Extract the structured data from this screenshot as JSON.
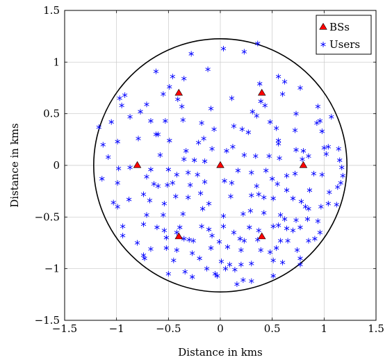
{
  "chart_data": {
    "type": "scatter",
    "title": "",
    "xlabel": "Distance in kms",
    "ylabel": "Distance in kms",
    "xlim": [
      -1.5,
      1.5
    ],
    "ylim": [
      -1.5,
      1.5
    ],
    "xticks": [
      -1.5,
      -1,
      -0.5,
      0,
      0.5,
      1,
      1.5
    ],
    "yticks": [
      -1.5,
      -1,
      -0.5,
      0,
      0.5,
      1,
      1.5
    ],
    "xtick_labels": [
      "−1.5",
      "−1",
      "−0.5",
      "0",
      "0.5",
      "1",
      "1.5"
    ],
    "ytick_labels": [
      "−1.5",
      "−1",
      "−0.5",
      "0",
      "0.5",
      "1",
      "1.5"
    ],
    "grid": true,
    "legend_position": "top-right",
    "boundary_circle": {
      "center": [
        0,
        0
      ],
      "radius": 1.22,
      "color": "#000000"
    },
    "series": [
      {
        "name": "BSs",
        "marker": "triangle",
        "color": "#ff0000",
        "points": [
          [
            0,
            0
          ],
          [
            -0.8,
            0
          ],
          [
            0.8,
            0
          ],
          [
            -0.4,
            0.7
          ],
          [
            0.4,
            0.7
          ],
          [
            -0.4,
            -0.69
          ],
          [
            0.4,
            -0.69
          ]
        ]
      },
      {
        "name": "Users",
        "marker": "asterisk",
        "color": "#0000ff",
        "points": [
          [
            0.23,
            1.1
          ],
          [
            0.36,
            1.18
          ],
          [
            0.03,
            1.13
          ],
          [
            -0.28,
            1.08
          ],
          [
            -0.12,
            0.93
          ],
          [
            -0.35,
            0.84
          ],
          [
            -0.46,
            0.86
          ],
          [
            -0.62,
            0.91
          ],
          [
            0.56,
            0.86
          ],
          [
            0.62,
            0.81
          ],
          [
            0.38,
            0.79
          ],
          [
            0.77,
            0.75
          ],
          [
            -0.92,
            0.68
          ],
          [
            -0.97,
            0.65
          ],
          [
            -0.95,
            0.58
          ],
          [
            -0.49,
            0.76
          ],
          [
            -0.55,
            0.69
          ],
          [
            -0.41,
            0.64
          ],
          [
            -0.37,
            0.57
          ],
          [
            0.39,
            0.62
          ],
          [
            0.43,
            0.58
          ],
          [
            -0.71,
            0.59
          ],
          [
            0.11,
            0.65
          ],
          [
            -0.09,
            0.55
          ],
          [
            0.31,
            0.52
          ],
          [
            0.6,
            0.69
          ],
          [
            0.94,
            0.57
          ],
          [
            0.73,
            0.5
          ],
          [
            -0.87,
            0.47
          ],
          [
            -0.77,
            0.52
          ],
          [
            -0.67,
            0.43
          ],
          [
            -0.53,
            0.43
          ],
          [
            -0.36,
            0.44
          ],
          [
            -0.18,
            0.41
          ],
          [
            0.13,
            0.38
          ],
          [
            0.35,
            0.48
          ],
          [
            0.54,
            0.36
          ],
          [
            0.48,
            0.42
          ],
          [
            0.27,
            0.32
          ],
          [
            -0.06,
            0.35
          ],
          [
            0.96,
            0.43
          ],
          [
            0.93,
            0.41
          ],
          [
            1.07,
            0.47
          ],
          [
            0.98,
            0.33
          ],
          [
            -1.05,
            0.42
          ],
          [
            -0.62,
            0.3
          ],
          [
            -0.79,
            0.26
          ],
          [
            -0.6,
            0.3
          ],
          [
            -0.49,
            0.24
          ],
          [
            0.21,
            0.35
          ],
          [
            0.56,
            0.24
          ],
          [
            0.72,
            0.34
          ],
          [
            0.56,
            0.21
          ],
          [
            0.12,
            0.18
          ],
          [
            0.06,
            0.14
          ],
          [
            -0.16,
            0.26
          ],
          [
            -0.21,
            0.22
          ],
          [
            -0.08,
            0.16
          ],
          [
            -0.33,
            0.14
          ],
          [
            -0.58,
            0.1
          ],
          [
            -0.99,
            0.23
          ],
          [
            -1.13,
            0.2
          ],
          [
            -1.17,
            0.37
          ],
          [
            -1.08,
            0.08
          ],
          [
            0.73,
            0.15
          ],
          [
            0.8,
            0.14
          ],
          [
            1.0,
            0.17
          ],
          [
            1.04,
            0.18
          ],
          [
            1.14,
            0.16
          ],
          [
            1.02,
            0.11
          ],
          [
            -0.35,
            0.06
          ],
          [
            -0.25,
            0.05
          ],
          [
            -0.15,
            0.04
          ],
          [
            0.23,
            0.1
          ],
          [
            0.34,
            0.09
          ],
          [
            0.47,
            0.09
          ],
          [
            0.57,
            0.07
          ],
          [
            0.79,
            0.06
          ],
          [
            0.85,
            0.09
          ],
          [
            1.15,
            0.05
          ],
          [
            -0.98,
            -0.03
          ],
          [
            -0.87,
            -0.02
          ],
          [
            -0.67,
            -0.04
          ],
          [
            -0.5,
            -0.04
          ],
          [
            -0.42,
            -0.09
          ],
          [
            -0.31,
            -0.07
          ],
          [
            -0.22,
            -0.09
          ],
          [
            0.17,
            -0.05
          ],
          [
            0.3,
            -0.07
          ],
          [
            0.44,
            -0.05
          ],
          [
            0.5,
            -0.13
          ],
          [
            0.64,
            -0.1
          ],
          [
            0.72,
            -0.08
          ],
          [
            0.9,
            -0.08
          ],
          [
            0.98,
            -0.09
          ],
          [
            1.17,
            -0.02
          ],
          [
            1.18,
            -0.1
          ],
          [
            1.16,
            -0.17
          ],
          [
            -1.14,
            -0.13
          ],
          [
            -0.99,
            -0.17
          ],
          [
            -0.71,
            -0.11
          ],
          [
            -0.64,
            -0.18
          ],
          [
            -0.6,
            -0.2
          ],
          [
            -0.51,
            -0.19
          ],
          [
            -0.46,
            -0.17
          ],
          [
            -0.29,
            -0.19
          ],
          [
            -0.15,
            -0.16
          ],
          [
            0.04,
            -0.15
          ],
          [
            0.11,
            -0.17
          ],
          [
            0.35,
            -0.2
          ],
          [
            0.55,
            -0.18
          ],
          [
            0.64,
            -0.24
          ],
          [
            0.86,
            -0.24
          ],
          [
            1.05,
            -0.26
          ],
          [
            1.13,
            -0.21
          ],
          [
            -1.03,
            -0.36
          ],
          [
            -0.99,
            -0.4
          ],
          [
            -0.88,
            -0.33
          ],
          [
            -0.74,
            -0.28
          ],
          [
            -0.68,
            -0.34
          ],
          [
            -0.54,
            -0.37
          ],
          [
            -0.43,
            -0.3
          ],
          [
            -0.31,
            -0.31
          ],
          [
            -0.19,
            -0.27
          ],
          [
            -0.11,
            -0.37
          ],
          [
            0.1,
            -0.3
          ],
          [
            0.3,
            -0.29
          ],
          [
            0.37,
            -0.28
          ],
          [
            0.42,
            -0.31
          ],
          [
            0.51,
            -0.32
          ],
          [
            0.7,
            -0.32
          ],
          [
            0.78,
            -0.35
          ],
          [
            0.82,
            -0.4
          ],
          [
            0.85,
            -0.42
          ],
          [
            0.97,
            -0.4
          ],
          [
            1.04,
            -0.37
          ],
          [
            1.12,
            -0.38
          ],
          [
            -0.71,
            -0.48
          ],
          [
            -0.55,
            -0.48
          ],
          [
            -0.36,
            -0.47
          ],
          [
            -0.17,
            -0.42
          ],
          [
            0.03,
            -0.49
          ],
          [
            0.22,
            -0.47
          ],
          [
            0.29,
            -0.44
          ],
          [
            0.42,
            -0.46
          ],
          [
            0.58,
            -0.48
          ],
          [
            0.62,
            -0.52
          ],
          [
            0.73,
            -0.53
          ],
          [
            0.84,
            -0.52
          ],
          [
            0.94,
            -0.54
          ],
          [
            -0.94,
            -0.59
          ],
          [
            -0.94,
            -0.68
          ],
          [
            -0.74,
            -0.57
          ],
          [
            -0.61,
            -0.6
          ],
          [
            -0.39,
            -0.6
          ],
          [
            -0.42,
            -0.65
          ],
          [
            -0.18,
            -0.59
          ],
          [
            -0.11,
            -0.62
          ],
          [
            0.03,
            -0.59
          ],
          [
            0.28,
            -0.6
          ],
          [
            0.37,
            -0.63
          ],
          [
            0.51,
            -0.59
          ],
          [
            0.56,
            -0.58
          ],
          [
            0.64,
            -0.61
          ],
          [
            0.7,
            -0.63
          ],
          [
            0.77,
            -0.6
          ],
          [
            0.96,
            -0.65
          ],
          [
            -0.54,
            -0.63
          ],
          [
            -0.52,
            -0.7
          ],
          [
            -0.35,
            -0.71
          ],
          [
            -0.3,
            -0.72
          ],
          [
            -0.26,
            -0.73
          ],
          [
            -0.08,
            -0.68
          ],
          [
            -0.01,
            -0.74
          ],
          [
            0.13,
            -0.65
          ],
          [
            0.19,
            -0.71
          ],
          [
            0.23,
            -0.73
          ],
          [
            0.36,
            -0.72
          ],
          [
            0.58,
            -0.73
          ],
          [
            0.65,
            -0.73
          ],
          [
            0.85,
            -0.73
          ],
          [
            0.91,
            -0.71
          ],
          [
            -0.8,
            -0.75
          ],
          [
            -0.67,
            -0.81
          ],
          [
            -0.74,
            -0.87
          ],
          [
            -0.52,
            -0.8
          ],
          [
            -0.42,
            -0.82
          ],
          [
            -0.27,
            -0.85
          ],
          [
            -0.09,
            -0.8
          ],
          [
            0.07,
            -0.79
          ],
          [
            0.2,
            -0.82
          ],
          [
            0.39,
            -0.82
          ],
          [
            0.48,
            -0.84
          ],
          [
            0.54,
            -0.8
          ],
          [
            0.74,
            -0.82
          ],
          [
            0.77,
            -0.9
          ],
          [
            0.77,
            -0.96
          ],
          [
            -0.73,
            -0.9
          ],
          [
            -0.45,
            -0.92
          ],
          [
            -0.2,
            -0.9
          ],
          [
            0.01,
            -0.93
          ],
          [
            0.09,
            -0.96
          ],
          [
            0.2,
            -0.96
          ],
          [
            0.3,
            -0.95
          ],
          [
            0.51,
            -0.92
          ],
          [
            0.6,
            -0.94
          ],
          [
            -0.5,
            -1.05
          ],
          [
            -0.34,
            -1.03
          ],
          [
            -0.27,
            -1.08
          ],
          [
            -0.13,
            -1.0
          ],
          [
            -0.05,
            -1.05
          ],
          [
            0.05,
            -1.0
          ],
          [
            0.14,
            -1.01
          ],
          [
            0.22,
            -1.11
          ],
          [
            0.16,
            -1.15
          ],
          [
            0.3,
            -1.12
          ],
          [
            0.51,
            -1.07
          ],
          [
            -0.03,
            -1.07
          ]
        ]
      }
    ]
  }
}
